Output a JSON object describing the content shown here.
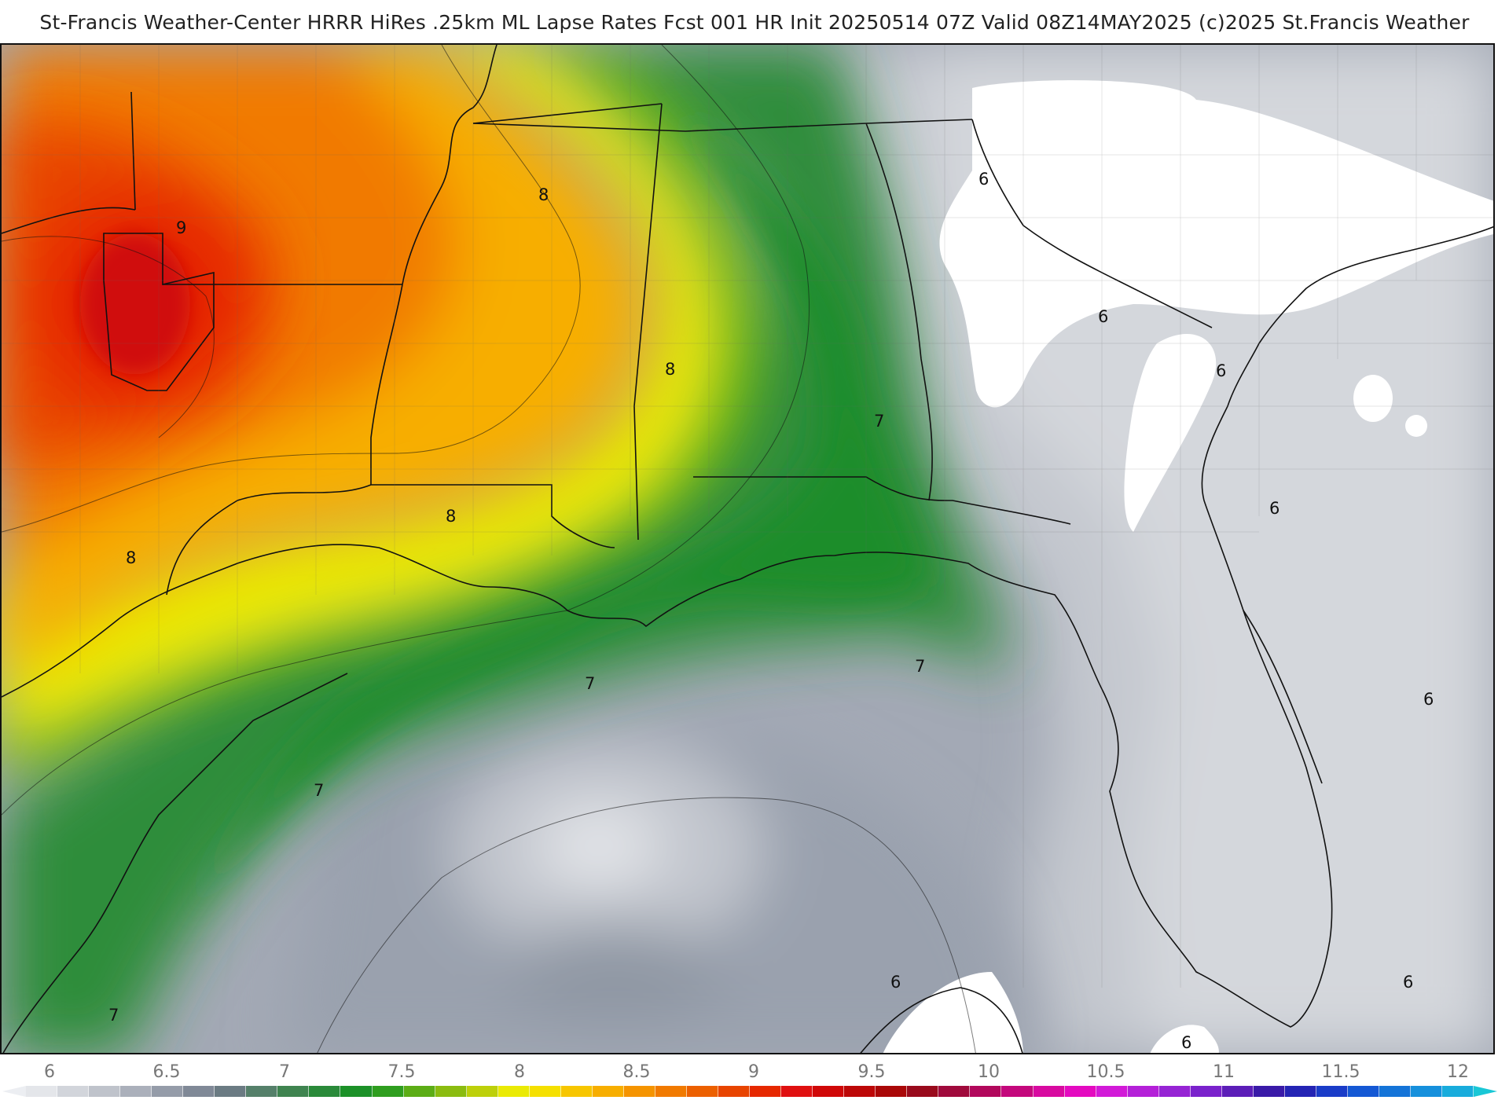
{
  "header": {
    "title": "St-Francis Weather-Center HRRR HiRes .25km ML Lapse Rates  Fcst 001 HR Init 20250514 07Z  Valid 08Z14MAY2025    (c)2025 St.Francis Weather"
  },
  "map": {
    "field": "ML Lapse Rates",
    "contour_labels": [
      {
        "id": "c9",
        "text": "9"
      },
      {
        "id": "c8a",
        "text": "8"
      },
      {
        "id": "c8b",
        "text": "8"
      },
      {
        "id": "c8c",
        "text": "8"
      },
      {
        "id": "c8d",
        "text": "8"
      },
      {
        "id": "c7a",
        "text": "7"
      },
      {
        "id": "c7b",
        "text": "7"
      },
      {
        "id": "c7c",
        "text": "7"
      },
      {
        "id": "c7d",
        "text": "7"
      },
      {
        "id": "c7e",
        "text": "7"
      },
      {
        "id": "c6a",
        "text": "6"
      },
      {
        "id": "c6b",
        "text": "6"
      },
      {
        "id": "c6c",
        "text": "6"
      },
      {
        "id": "c6d",
        "text": "6"
      },
      {
        "id": "c6e",
        "text": "6"
      },
      {
        "id": "c6f",
        "text": "6"
      },
      {
        "id": "c6g",
        "text": "6"
      },
      {
        "id": "c6h",
        "text": "6"
      }
    ]
  },
  "colorbar": {
    "ticks": [
      "6",
      "6.5",
      "7",
      "7.5",
      "8",
      "8.5",
      "9",
      "9.5",
      "10",
      "10.5",
      "11",
      "11.5",
      "12"
    ],
    "colors": [
      "#e4e6ea",
      "#d2d5db",
      "#bfc3cb",
      "#abb0bb",
      "#959ca9",
      "#808997",
      "#6b7b83",
      "#55806a",
      "#3f8450",
      "#2a8a3a",
      "#1c9128",
      "#2f9e1f",
      "#5cad16",
      "#8bbc10",
      "#bdd00a",
      "#eaea05",
      "#f5e000",
      "#f7c600",
      "#f7ae00",
      "#f59400",
      "#f17a00",
      "#ec6000",
      "#e84400",
      "#e62800",
      "#e01010",
      "#d00808",
      "#bd0808",
      "#aa0808",
      "#990a1c",
      "#a00a3c",
      "#b2085c",
      "#c4087c",
      "#d80aa0",
      "#e40ac0",
      "#d21ad8",
      "#b420d8",
      "#9624d4",
      "#7a22cc",
      "#5c1eb8",
      "#3a1aa8",
      "#2424b4",
      "#1a3cc8",
      "#1458d4",
      "#1474d8",
      "#1690dc",
      "#18acdc"
    ]
  }
}
